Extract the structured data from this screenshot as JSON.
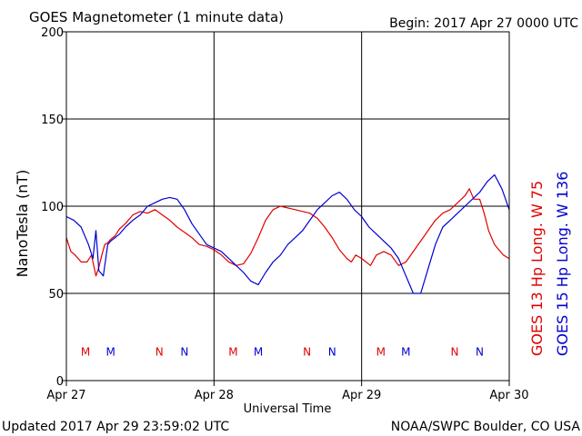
{
  "chart_data": {
    "type": "line",
    "title": "GOES Magnetometer (1 minute data)",
    "begin_label": "Begin:  2017 Apr 27 0000 UTC",
    "xlabel": "Universal Time",
    "ylabel": "NanoTesla (nT)",
    "ylim": [
      0,
      200
    ],
    "yticks": [
      0,
      50,
      100,
      150,
      200
    ],
    "xlim": [
      0,
      3
    ],
    "xticks": [
      {
        "x": 0,
        "label": "Apr 27"
      },
      {
        "x": 1,
        "label": "Apr 28"
      },
      {
        "x": 2,
        "label": "Apr 29"
      },
      {
        "x": 3,
        "label": "Apr 30"
      }
    ],
    "grid": true,
    "series": [
      {
        "name": "GOES 13 Hp  Long. W 75",
        "color": "#e00000",
        "x": [
          0,
          0.03,
          0.06,
          0.1,
          0.14,
          0.17,
          0.2,
          0.22,
          0.24,
          0.26,
          0.28,
          0.3,
          0.33,
          0.36,
          0.4,
          0.45,
          0.5,
          0.55,
          0.6,
          0.65,
          0.7,
          0.75,
          0.8,
          0.85,
          0.9,
          0.95,
          1.0,
          1.05,
          1.1,
          1.15,
          1.2,
          1.25,
          1.3,
          1.35,
          1.4,
          1.45,
          1.5,
          1.55,
          1.6,
          1.65,
          1.7,
          1.75,
          1.8,
          1.85,
          1.9,
          1.93,
          1.96,
          2.0,
          2.03,
          2.06,
          2.1,
          2.15,
          2.2,
          2.25,
          2.3,
          2.35,
          2.4,
          2.45,
          2.5,
          2.55,
          2.6,
          2.65,
          2.7,
          2.73,
          2.76,
          2.8,
          2.83,
          2.86,
          2.9,
          2.93,
          2.96,
          3.0
        ],
        "y": [
          82,
          74,
          72,
          68,
          68,
          72,
          60,
          65,
          72,
          78,
          79,
          81,
          83,
          87,
          90,
          95,
          97,
          96,
          98,
          95,
          92,
          88,
          85,
          82,
          78,
          77,
          75,
          72,
          68,
          66,
          67,
          73,
          82,
          92,
          98,
          100,
          99,
          98,
          97,
          96,
          93,
          88,
          82,
          75,
          70,
          68,
          72,
          70,
          68,
          66,
          72,
          74,
          72,
          66,
          68,
          74,
          80,
          86,
          92,
          96,
          98,
          102,
          106,
          110,
          104,
          104,
          96,
          86,
          78,
          75,
          72,
          70
        ]
      },
      {
        "name": "GOES 15 Hp  Long. W 136",
        "color": "#0000d0",
        "x": [
          0,
          0.05,
          0.1,
          0.15,
          0.18,
          0.2,
          0.22,
          0.25,
          0.28,
          0.3,
          0.33,
          0.36,
          0.4,
          0.45,
          0.5,
          0.55,
          0.6,
          0.65,
          0.7,
          0.75,
          0.8,
          0.85,
          0.9,
          0.95,
          1.0,
          1.05,
          1.1,
          1.15,
          1.2,
          1.25,
          1.3,
          1.35,
          1.4,
          1.45,
          1.5,
          1.55,
          1.6,
          1.65,
          1.7,
          1.75,
          1.8,
          1.85,
          1.9,
          1.95,
          2.0,
          2.05,
          2.1,
          2.15,
          2.2,
          2.25,
          2.3,
          2.35,
          2.4,
          2.45,
          2.5,
          2.55,
          2.6,
          2.65,
          2.7,
          2.75,
          2.8,
          2.85,
          2.9,
          2.95,
          3.0
        ],
        "y": [
          94,
          92,
          88,
          78,
          70,
          86,
          63,
          60,
          78,
          80,
          82,
          84,
          88,
          92,
          95,
          100,
          102,
          104,
          105,
          104,
          98,
          90,
          84,
          78,
          76,
          74,
          70,
          66,
          62,
          57,
          55,
          62,
          68,
          72,
          78,
          82,
          86,
          92,
          98,
          102,
          106,
          108,
          104,
          98,
          94,
          88,
          84,
          80,
          76,
          70,
          60,
          50,
          50,
          64,
          78,
          88,
          92,
          96,
          100,
          104,
          108,
          114,
          118,
          110,
          98
        ]
      }
    ],
    "markers": [
      {
        "label": "M",
        "x": 0.13,
        "color": "#e00000"
      },
      {
        "label": "M",
        "x": 0.3,
        "color": "#0000d0"
      },
      {
        "label": "N",
        "x": 0.63,
        "color": "#e00000"
      },
      {
        "label": "N",
        "x": 0.8,
        "color": "#0000d0"
      },
      {
        "label": "M",
        "x": 1.13,
        "color": "#e00000"
      },
      {
        "label": "M",
        "x": 1.3,
        "color": "#0000d0"
      },
      {
        "label": "N",
        "x": 1.63,
        "color": "#e00000"
      },
      {
        "label": "N",
        "x": 1.8,
        "color": "#0000d0"
      },
      {
        "label": "M",
        "x": 2.13,
        "color": "#e00000"
      },
      {
        "label": "M",
        "x": 2.3,
        "color": "#0000d0"
      },
      {
        "label": "N",
        "x": 2.63,
        "color": "#e00000"
      },
      {
        "label": "N",
        "x": 2.8,
        "color": "#0000d0"
      }
    ],
    "marker_y": 17
  },
  "footer": {
    "updated": "Updated 2017 Apr 29 23:59:02 UTC",
    "source": "NOAA/SWPC Boulder, CO USA"
  }
}
